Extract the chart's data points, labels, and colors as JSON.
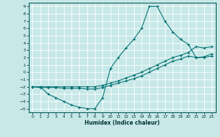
{
  "xlabel": "Humidex (Indice chaleur)",
  "bg_color": "#c8e8e8",
  "grid_color": "#a0c8c8",
  "line_color": "#007070",
  "xlim": [
    -0.5,
    23.5
  ],
  "ylim": [
    -5.5,
    9.5
  ],
  "xticks": [
    0,
    1,
    2,
    3,
    4,
    5,
    6,
    7,
    8,
    9,
    10,
    11,
    12,
    13,
    14,
    15,
    16,
    17,
    18,
    19,
    20,
    21,
    22,
    23
  ],
  "yticks": [
    -5,
    -4,
    -3,
    -2,
    -1,
    0,
    1,
    2,
    3,
    4,
    5,
    6,
    7,
    8,
    9
  ],
  "series": [
    {
      "x": [
        0,
        1,
        2,
        3,
        4,
        5,
        6,
        7,
        8,
        9,
        10,
        11,
        12,
        13,
        14,
        15,
        16,
        17,
        18,
        19,
        20,
        21,
        22,
        23
      ],
      "y": [
        -2,
        -2,
        -3,
        -3.5,
        -4,
        -4.5,
        -4.8,
        -5,
        -5,
        -3.5,
        0.5,
        2,
        3.3,
        4.5,
        6,
        9,
        9,
        7,
        5.5,
        4.5,
        3.8,
        2,
        2,
        2.2
      ]
    },
    {
      "x": [
        0,
        1,
        2,
        3,
        4,
        5,
        6,
        7,
        8,
        9,
        10,
        11,
        12,
        13,
        14,
        15,
        16,
        17,
        18,
        19,
        20,
        21,
        22,
        23
      ],
      "y": [
        -2,
        -2.1,
        -2.1,
        -2.1,
        -2.2,
        -2.2,
        -2.2,
        -2.3,
        -2.3,
        -2.1,
        -1.8,
        -1.5,
        -1.2,
        -0.9,
        -0.5,
        0,
        0.5,
        1,
        1.5,
        1.8,
        2.2,
        2,
        2.1,
        2.5
      ]
    },
    {
      "x": [
        0,
        1,
        2,
        3,
        4,
        5,
        6,
        7,
        8,
        9,
        10,
        11,
        12,
        13,
        14,
        15,
        16,
        17,
        18,
        19,
        20,
        21,
        22,
        23
      ],
      "y": [
        -2,
        -2,
        -2,
        -2,
        -2,
        -2,
        -2,
        -2,
        -2,
        -1.8,
        -1.5,
        -1.2,
        -0.8,
        -0.4,
        0,
        0.5,
        1,
        1.5,
        2,
        2.3,
        2.7,
        3.5,
        3.3,
        3.5
      ]
    }
  ]
}
